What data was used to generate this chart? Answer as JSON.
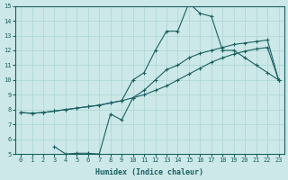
{
  "xlabel": "Humidex (Indice chaleur)",
  "xlim": [
    -0.5,
    23.5
  ],
  "ylim": [
    5,
    15
  ],
  "xticks": [
    0,
    1,
    2,
    3,
    4,
    5,
    6,
    7,
    8,
    9,
    10,
    11,
    12,
    13,
    14,
    15,
    16,
    17,
    18,
    19,
    20,
    21,
    22,
    23
  ],
  "yticks": [
    5,
    6,
    7,
    8,
    9,
    10,
    11,
    12,
    13,
    14,
    15
  ],
  "background_color": "#cce8e8",
  "grid_color": "#aad4d4",
  "line_color": "#1a6060",
  "curve1_x": [
    0,
    1,
    2,
    3,
    4,
    5,
    6,
    7,
    8,
    9,
    10,
    11,
    12,
    13,
    14,
    15,
    16,
    17,
    18,
    19,
    20,
    21,
    22,
    23
  ],
  "curve1_y": [
    7.8,
    7.75,
    7.8,
    7.9,
    8.0,
    8.1,
    8.2,
    8.3,
    8.45,
    8.6,
    8.8,
    9.0,
    9.3,
    9.6,
    10.0,
    10.4,
    10.8,
    11.2,
    11.5,
    11.75,
    11.95,
    12.1,
    12.2,
    10.0
  ],
  "curve2_x": [
    0,
    1,
    2,
    3,
    4,
    5,
    6,
    7,
    8,
    9,
    10,
    11,
    12,
    13,
    14,
    15,
    16,
    17,
    18,
    19,
    20,
    21,
    22,
    23
  ],
  "curve2_y": [
    7.8,
    7.75,
    7.8,
    7.9,
    8.0,
    8.1,
    8.2,
    8.3,
    8.45,
    8.6,
    10.0,
    10.5,
    12.0,
    13.3,
    13.3,
    15.2,
    14.5,
    14.3,
    12.0,
    12.0,
    11.5,
    11.0,
    10.5,
    10.0
  ],
  "curve3_x": [
    3,
    4,
    5,
    6,
    7,
    8,
    9,
    10,
    11,
    12,
    13,
    14,
    15,
    16,
    17,
    18,
    19,
    20,
    21,
    22,
    23
  ],
  "curve3_y": [
    5.5,
    5.0,
    5.05,
    5.05,
    5.0,
    7.7,
    7.3,
    8.8,
    9.3,
    10.0,
    10.7,
    11.0,
    11.5,
    11.8,
    12.0,
    12.2,
    12.4,
    12.5,
    12.6,
    12.7,
    10.0
  ],
  "figsize": [
    3.2,
    2.0
  ],
  "dpi": 100
}
